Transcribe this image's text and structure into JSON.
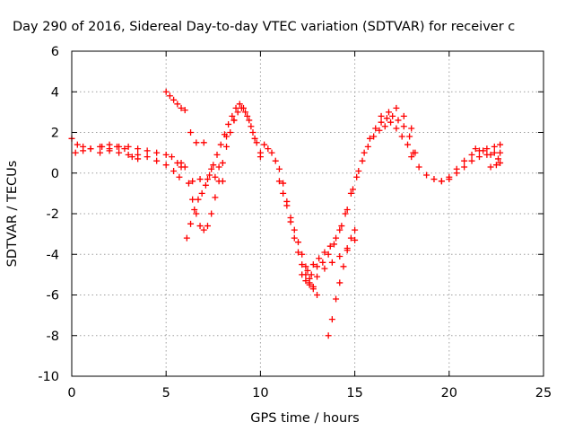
{
  "chart_data": {
    "type": "scatter",
    "title": "Day 290 of 2016, Sidereal Day-to-day VTEC variation (SDTVAR) for receiver c",
    "xlabel": "GPS time / hours",
    "ylabel": "SDTVAR / TECUs",
    "xlim": [
      0,
      25
    ],
    "ylim": [
      -10,
      6
    ],
    "xticks": [
      0,
      5,
      10,
      15,
      20,
      25
    ],
    "yticks": [
      -10,
      -8,
      -6,
      -4,
      -2,
      0,
      2,
      4,
      6
    ],
    "grid": true,
    "marker": "plus",
    "color": "#ff0000",
    "series": [
      {
        "x": [
          0.0,
          0.3,
          0.6,
          1.0,
          1.5,
          2.0,
          2.5,
          3.0,
          3.5,
          4.0,
          4.5,
          5.0,
          5.3,
          5.6,
          5.8
        ],
        "y": [
          1.7,
          1.4,
          1.3,
          1.2,
          1.3,
          1.2,
          1.3,
          1.3,
          1.2,
          1.1,
          1.0,
          0.9,
          0.8,
          0.5,
          0.3
        ]
      },
      {
        "x": [
          0.2,
          0.6,
          1.0,
          1.5,
          2.0,
          2.5,
          3.0,
          3.5,
          4.0,
          4.5,
          5.0,
          5.4,
          5.7
        ],
        "y": [
          1.0,
          1.1,
          1.2,
          1.0,
          1.1,
          1.0,
          0.9,
          0.9,
          0.8,
          0.6,
          0.4,
          0.1,
          -0.2
        ]
      },
      {
        "x": [
          1.6,
          2.0,
          2.4,
          2.8,
          3.2,
          3.5
        ],
        "y": [
          1.3,
          1.4,
          1.3,
          1.2,
          0.8,
          0.7
        ]
      },
      {
        "x": [
          5.0,
          5.2,
          5.4,
          5.6,
          5.8,
          6.0
        ],
        "y": [
          4.0,
          3.8,
          3.6,
          3.4,
          3.2,
          3.1
        ]
      },
      {
        "x": [
          5.8,
          6.0,
          6.2,
          6.4,
          6.6,
          6.8,
          7.0,
          7.2,
          7.4,
          7.6,
          7.8,
          8.0,
          8.2,
          8.4,
          8.6,
          8.8,
          9.0,
          9.2,
          9.4,
          9.6,
          9.8,
          10.0
        ],
        "y": [
          0.5,
          0.3,
          -0.5,
          -1.3,
          -2.0,
          -2.6,
          -2.8,
          -2.6,
          -2.0,
          -1.2,
          -0.4,
          0.5,
          1.3,
          2.0,
          2.6,
          3.0,
          3.2,
          3.0,
          2.6,
          2.0,
          1.5,
          0.8
        ]
      },
      {
        "x": [
          6.1,
          6.3,
          6.5,
          6.7,
          6.9,
          7.1,
          7.3,
          7.5,
          7.7,
          7.9,
          8.1,
          8.3,
          8.5,
          8.7,
          8.9,
          9.1,
          9.3,
          9.5,
          9.7,
          10.0
        ],
        "y": [
          -3.2,
          -2.5,
          -1.8,
          -1.3,
          -1.0,
          -0.6,
          -0.1,
          0.4,
          0.9,
          1.4,
          1.9,
          2.4,
          2.8,
          3.2,
          3.4,
          3.2,
          2.8,
          2.3,
          1.7,
          1.0
        ]
      },
      {
        "x": [
          6.3,
          6.6,
          7.0,
          7.4,
          7.8,
          8.2,
          8.6
        ],
        "y": [
          2.0,
          1.5,
          1.5,
          0.2,
          0.3,
          1.8,
          2.6
        ]
      },
      {
        "x": [
          6.4,
          6.8,
          7.2,
          7.6,
          8.0
        ],
        "y": [
          -0.4,
          -0.3,
          -0.3,
          -0.2,
          -0.4
        ]
      },
      {
        "x": [
          10.2,
          10.4,
          10.6,
          10.8,
          11.0,
          11.2,
          11.4,
          11.6,
          11.8,
          12.0,
          12.2,
          12.4,
          12.6,
          12.8
        ],
        "y": [
          1.4,
          1.2,
          1.0,
          0.6,
          0.2,
          -0.5,
          -1.4,
          -2.4,
          -3.2,
          -3.9,
          -4.5,
          -5.0,
          -5.4,
          -5.6
        ]
      },
      {
        "x": [
          11.0,
          11.2,
          11.4,
          11.6,
          11.8,
          12.0,
          12.2,
          12.4,
          12.6,
          12.8,
          13.0
        ],
        "y": [
          -0.4,
          -1.0,
          -1.6,
          -2.2,
          -2.8,
          -3.4,
          -4.0,
          -4.6,
          -5.2,
          -5.7,
          -6.0
        ]
      },
      {
        "x": [
          12.2,
          12.5,
          12.8,
          13.1,
          13.4,
          13.7,
          14.0,
          14.3,
          14.6,
          14.9,
          15.2,
          15.5,
          15.8,
          16.1,
          16.4,
          16.7,
          17.0,
          17.3,
          17.6,
          17.9,
          18.2
        ],
        "y": [
          -5.0,
          -4.8,
          -4.5,
          -4.2,
          -3.9,
          -3.6,
          -3.2,
          -2.6,
          -1.8,
          -0.8,
          0.1,
          1.0,
          1.7,
          2.2,
          2.5,
          2.7,
          2.8,
          2.6,
          2.3,
          1.8,
          1.0
        ]
      },
      {
        "x": [
          12.4,
          12.7,
          13.0,
          13.3,
          13.6,
          13.9,
          14.2,
          14.5,
          14.8,
          15.1,
          15.4,
          15.7,
          16.0,
          16.3,
          16.6,
          16.9,
          17.2,
          17.5,
          17.8,
          18.1
        ],
        "y": [
          -5.3,
          -5.0,
          -4.6,
          -4.4,
          -4.0,
          -3.5,
          -2.8,
          -2.0,
          -1.0,
          -0.2,
          0.6,
          1.3,
          1.8,
          2.1,
          2.3,
          2.5,
          2.2,
          1.8,
          1.4,
          1.0
        ]
      },
      {
        "x": [
          13.6,
          13.8,
          14.0,
          14.2,
          14.4,
          14.6,
          14.8,
          15.0
        ],
        "y": [
          -8.0,
          -7.2,
          -6.2,
          -5.4,
          -4.6,
          -3.8,
          -3.2,
          -2.8
        ]
      },
      {
        "x": [
          12.6,
          13.0,
          13.4,
          13.8,
          14.2,
          14.6,
          15.0
        ],
        "y": [
          -5.5,
          -5.1,
          -4.7,
          -4.4,
          -4.1,
          -3.7,
          -3.3
        ]
      },
      {
        "x": [
          16.4,
          16.8,
          17.2,
          17.6,
          18.0
        ],
        "y": [
          2.8,
          3.0,
          3.2,
          2.8,
          2.2
        ]
      },
      {
        "x": [
          18.0,
          18.4,
          18.8,
          19.2,
          19.6,
          20.0,
          20.4,
          20.8,
          21.2,
          21.6,
          22.0,
          22.4,
          22.7
        ],
        "y": [
          0.8,
          0.3,
          -0.1,
          -0.3,
          -0.4,
          -0.3,
          0.0,
          0.3,
          0.6,
          0.8,
          0.9,
          1.0,
          1.0
        ]
      },
      {
        "x": [
          19.6,
          20.0,
          20.4,
          20.8,
          21.2,
          21.6,
          22.0,
          22.4,
          22.7
        ],
        "y": [
          -0.4,
          -0.2,
          0.2,
          0.6,
          0.9,
          1.1,
          1.2,
          1.3,
          1.4
        ]
      },
      {
        "x": [
          21.4,
          21.8,
          22.2,
          22.6
        ],
        "y": [
          1.2,
          1.1,
          0.9,
          0.7
        ]
      },
      {
        "x": [
          22.2,
          22.5,
          22.7
        ],
        "y": [
          0.3,
          0.4,
          0.5
        ]
      }
    ]
  }
}
